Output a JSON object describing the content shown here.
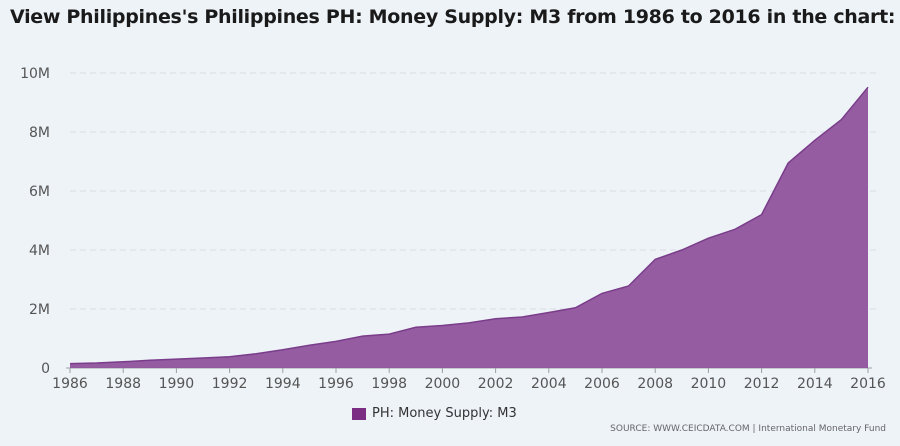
{
  "title": "View Philippines's Philippines PH: Money Supply: M3 from 1986 to 2016 in the chart:",
  "colors": {
    "series": "#8d4f9a",
    "series_line": "#7a3d8a",
    "legend": "#7b2c83",
    "grid": "#d9dee5",
    "axis": "#9aa0a6"
  },
  "chart_data": {
    "type": "area",
    "x": [
      1986,
      1987,
      1988,
      1989,
      1990,
      1991,
      1992,
      1993,
      1994,
      1995,
      1996,
      1997,
      1998,
      1999,
      2000,
      2001,
      2002,
      2003,
      2004,
      2005,
      2006,
      2007,
      2008,
      2009,
      2010,
      2011,
      2012,
      2013,
      2014,
      2015,
      2016
    ],
    "series": [
      {
        "name": "PH: Money Supply: M3",
        "values": [
          0.15,
          0.17,
          0.21,
          0.26,
          0.3,
          0.34,
          0.38,
          0.48,
          0.62,
          0.77,
          0.9,
          1.08,
          1.15,
          1.38,
          1.44,
          1.53,
          1.67,
          1.73,
          1.88,
          2.04,
          2.53,
          2.78,
          3.68,
          4.0,
          4.4,
          4.7,
          5.2,
          6.95,
          7.72,
          8.42,
          9.52
        ]
      }
    ],
    "yticks": [
      {
        "value": 0,
        "label": "0"
      },
      {
        "value": 2,
        "label": "2M"
      },
      {
        "value": 4,
        "label": "4M"
      },
      {
        "value": 6,
        "label": "6M"
      },
      {
        "value": 8,
        "label": "8M"
      },
      {
        "value": 10,
        "label": "10M"
      }
    ],
    "xticks": [
      "1986",
      "1988",
      "1990",
      "1992",
      "1994",
      "1996",
      "1998",
      "2000",
      "2002",
      "2004",
      "2006",
      "2008",
      "2010",
      "2012",
      "2014",
      "2016"
    ],
    "ylim": [
      0,
      10
    ],
    "xlim": [
      1986,
      2016
    ],
    "grid": true,
    "legend_position": "bottom-center"
  },
  "legend": {
    "label": "PH: Money Supply: M3"
  },
  "source": "SOURCE: WWW.CEICDATA.COM | International Monetary Fund"
}
